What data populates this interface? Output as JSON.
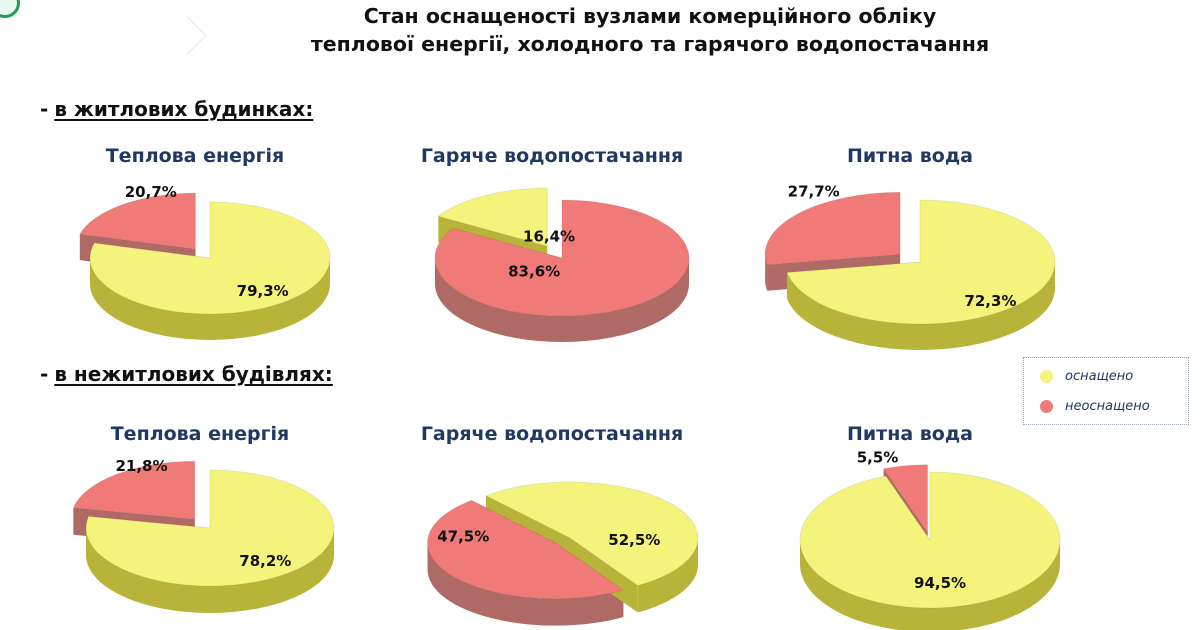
{
  "title_line1": "Стан оснащеності вузлами комерційного обліку",
  "title_line2": "теплової енергії, холодного та гарячого водопостачання",
  "section_residential": {
    "dash": "-",
    "label": "в житлових будинках:"
  },
  "section_nonresidential": {
    "dash": "-",
    "label": "в нежитлових будівлях:"
  },
  "legend": [
    {
      "label": "оснащено",
      "color": "#f4f47c"
    },
    {
      "label": "неоснащено",
      "color": "#f07a78"
    }
  ],
  "colors": {
    "equipped": "#f4f47c",
    "equipped_dark": "#b8b43a",
    "not_equipped": "#f07a78",
    "not_equipped_dark": "#b06a66",
    "title": "#1f3864"
  },
  "chart_data": [
    {
      "type": "pie",
      "group": "в житлових будинках",
      "title": "Теплова енергія",
      "slices": [
        {
          "label": "неоснащено",
          "value": 20.7,
          "text": "20,7%"
        },
        {
          "label": "оснащено",
          "value": 79.3,
          "text": "79,3%"
        }
      ]
    },
    {
      "type": "pie",
      "group": "в житлових будинках",
      "title": "Гаряче водопостачання",
      "slices": [
        {
          "label": "неоснащено",
          "value": 83.6,
          "text": "83,6%"
        },
        {
          "label": "оснащено",
          "value": 16.4,
          "text": "16,4%"
        }
      ]
    },
    {
      "type": "pie",
      "group": "в житлових будинках",
      "title": "Питна вода",
      "slices": [
        {
          "label": "неоснащено",
          "value": 27.7,
          "text": "27,7%"
        },
        {
          "label": "оснащено",
          "value": 72.3,
          "text": "72,3%"
        }
      ]
    },
    {
      "type": "pie",
      "group": "в нежитлових будівлях",
      "title": "Теплова енергія",
      "slices": [
        {
          "label": "неоснащено",
          "value": 21.8,
          "text": "21,8%"
        },
        {
          "label": "оснащено",
          "value": 78.2,
          "text": "78,2%"
        }
      ]
    },
    {
      "type": "pie",
      "group": "в нежитлових будівлях",
      "title": "Гаряче водопостачання",
      "slices": [
        {
          "label": "неоснащено",
          "value": 47.5,
          "text": "47,5%"
        },
        {
          "label": "оснащено",
          "value": 52.5,
          "text": "52,5%"
        }
      ]
    },
    {
      "type": "pie",
      "group": "в нежитлових будівлях",
      "title": "Питна вода",
      "slices": [
        {
          "label": "неоснащено",
          "value": 5.5,
          "text": "5,5%"
        },
        {
          "label": "оснащено",
          "value": 94.5,
          "text": "94,5%"
        }
      ]
    }
  ]
}
